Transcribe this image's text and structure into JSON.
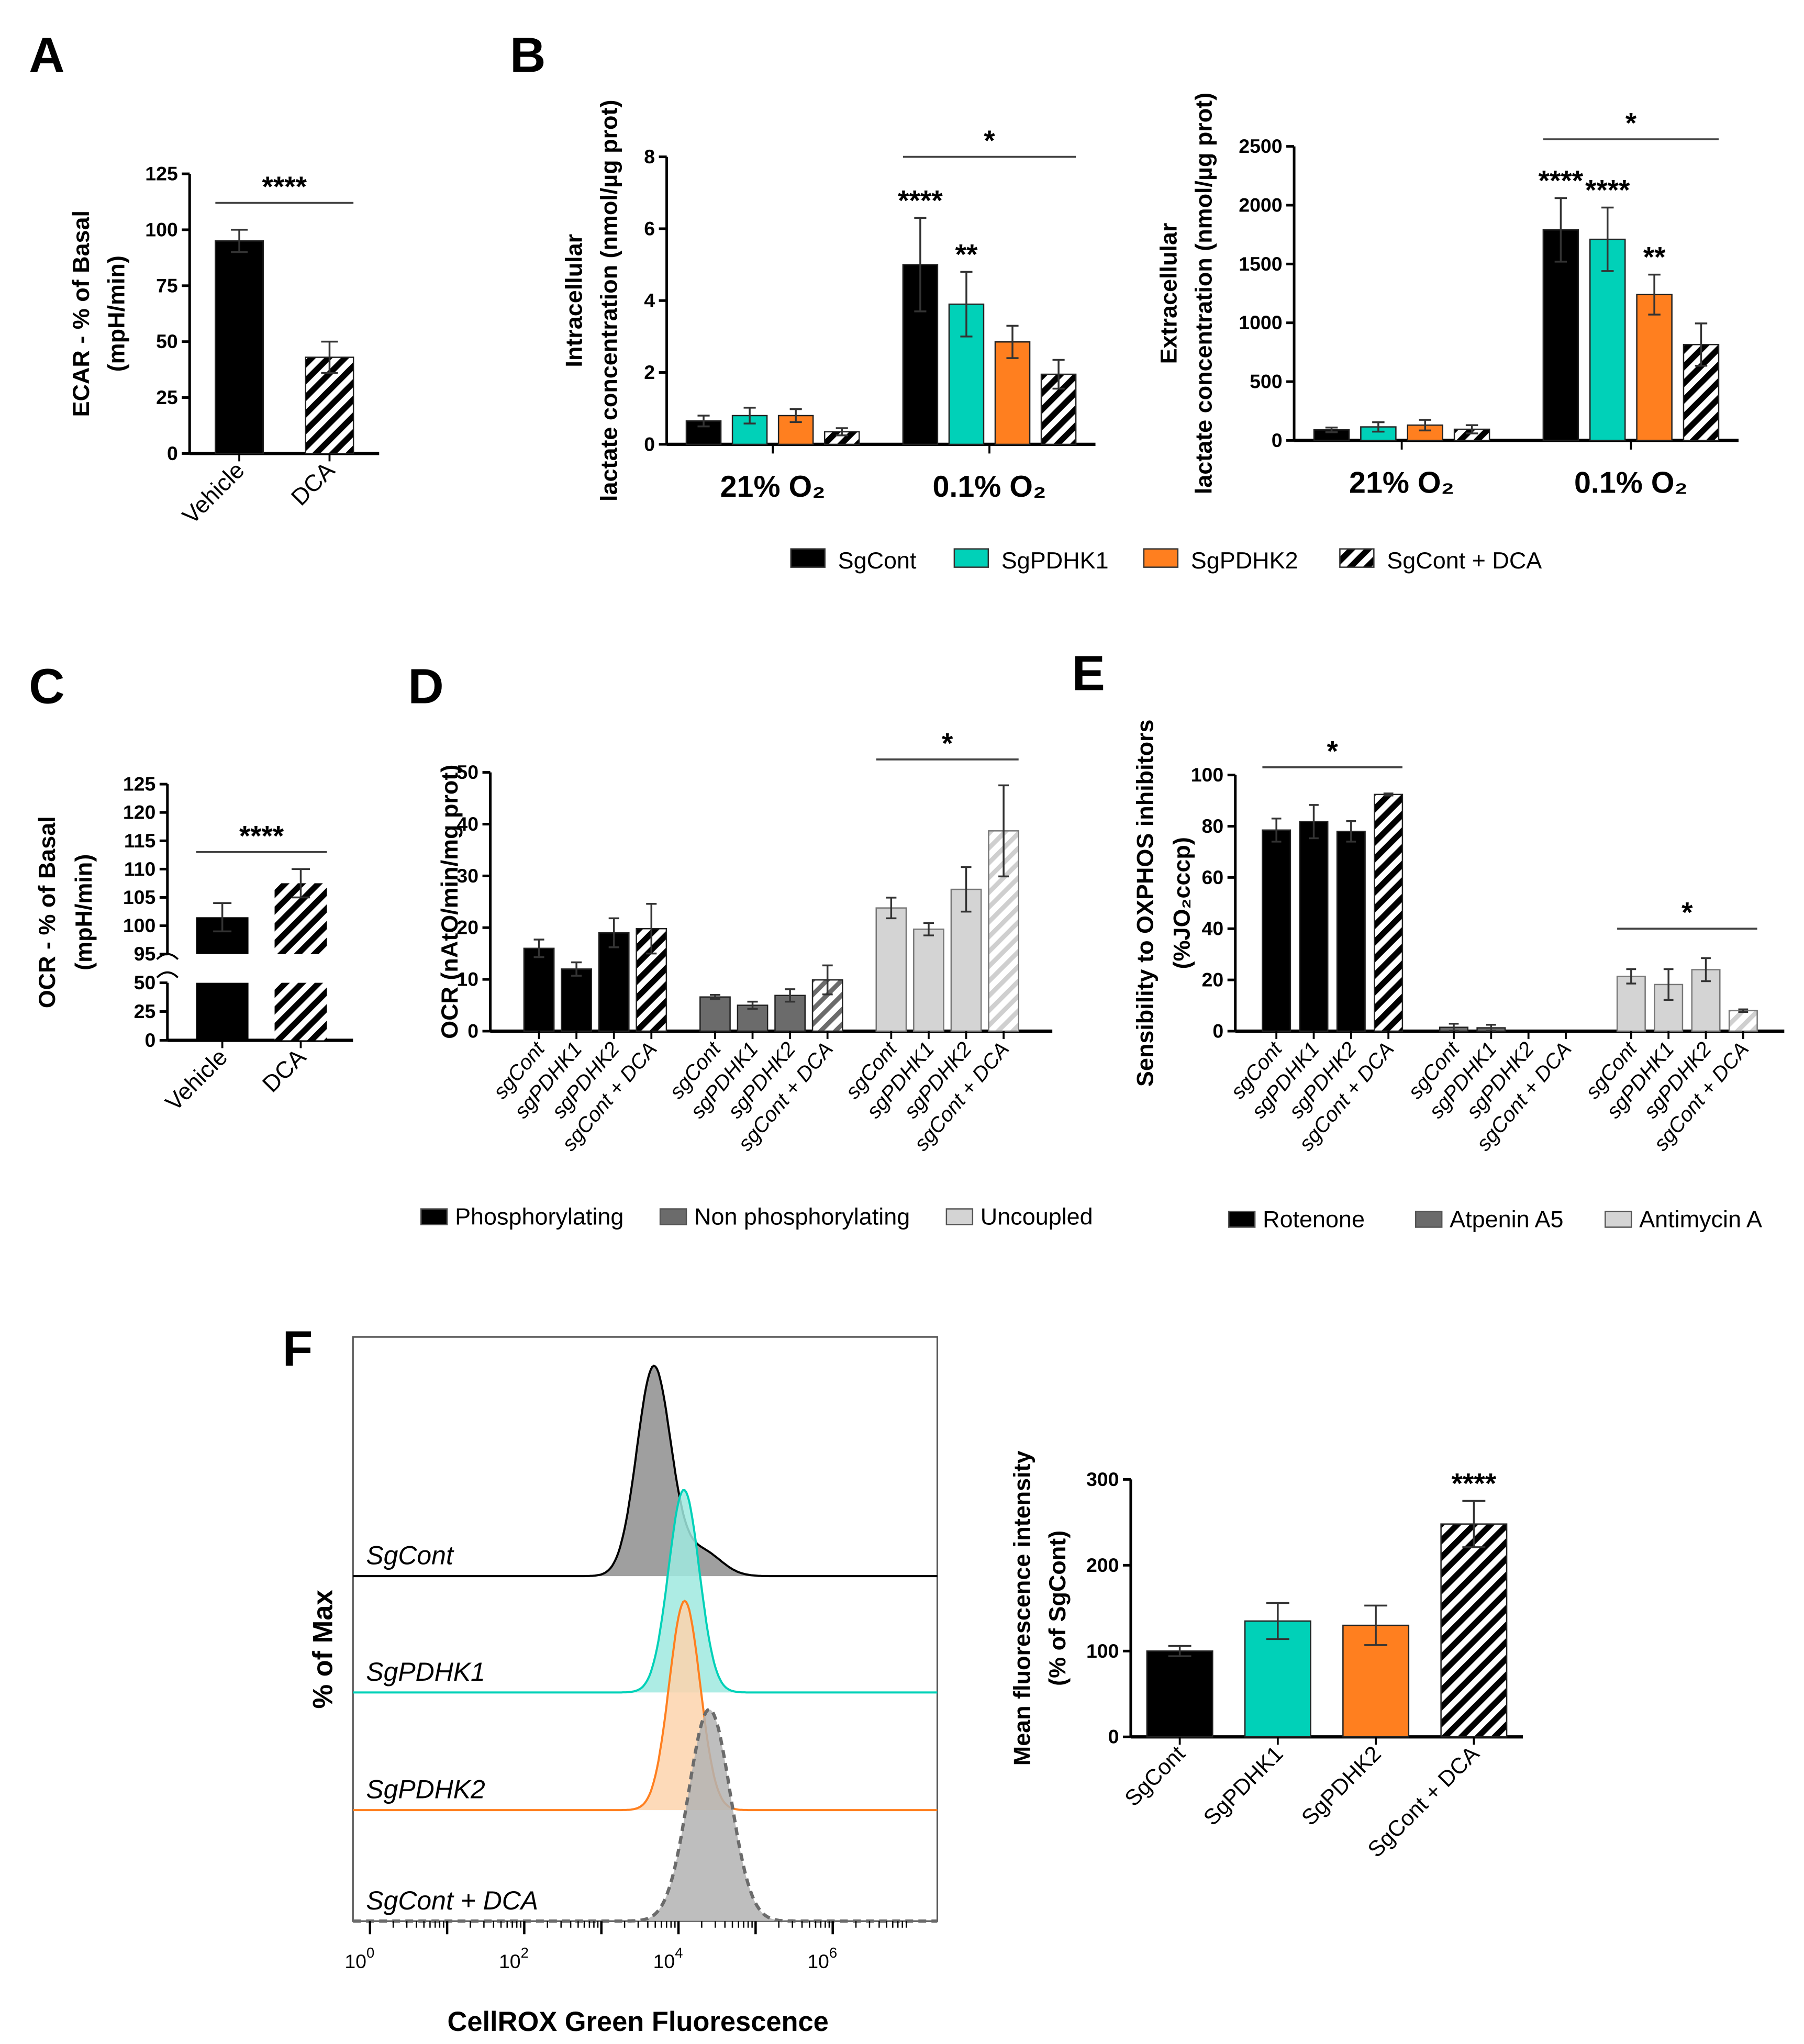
{
  "colors": {
    "black": "#000000",
    "teal": "#00d1b8",
    "orange": "#ff7f1f",
    "dark": "#6b6b6b",
    "light": "#d4d4d4",
    "tealFill": "#9fe9df",
    "orangeFill": "#fdd3ad",
    "grayFill": "#8e8e8e",
    "dcaFill": "#b3b3b3"
  },
  "panels": {
    "A": "A",
    "B": "B",
    "C": "C",
    "D": "D",
    "E": "E",
    "F": "F"
  },
  "chart_data": [
    {
      "id": "A",
      "type": "bar",
      "ylabel": [
        "ECAR - % of Basal",
        "(mpH/min)"
      ],
      "ylim": [
        0,
        125
      ],
      "yticks": [
        0,
        25,
        50,
        75,
        100,
        125
      ],
      "xmode": "rotated",
      "groups": [
        {
          "name": "",
          "bars": [
            {
              "label": "Vehicle",
              "value": 95,
              "error": 5,
              "fill": "black"
            },
            {
              "label": "DCA",
              "value": 43,
              "error": 7,
              "fill": "hatch"
            }
          ]
        }
      ],
      "sig": [
        {
          "text": "****",
          "from": 0,
          "to": 1,
          "at": 112
        }
      ]
    },
    {
      "id": "B1",
      "type": "bar",
      "ylabel": [
        "Intracellular",
        "lactate concentration (nmol/µg prot)"
      ],
      "ylim": [
        0,
        8
      ],
      "yticks": [
        0,
        2,
        4,
        6,
        8
      ],
      "xmode": "group",
      "groups": [
        {
          "name": "21% O₂",
          "bars": [
            {
              "label": "SgCont",
              "value": 0.65,
              "error": 0.15,
              "fill": "black"
            },
            {
              "label": "SgPDHK1",
              "value": 0.8,
              "error": 0.22,
              "fill": "teal"
            },
            {
              "label": "SgPDHK2",
              "value": 0.8,
              "error": 0.18,
              "fill": "orange"
            },
            {
              "label": "SgCont + DCA",
              "value": 0.35,
              "error": 0.1,
              "fill": "hatch"
            }
          ]
        },
        {
          "name": "0.1% O₂",
          "bars": [
            {
              "label": "SgCont",
              "value": 5.0,
              "error": 1.3,
              "fill": "black",
              "star": "****"
            },
            {
              "label": "SgPDHK1",
              "value": 3.9,
              "error": 0.9,
              "fill": "teal",
              "star": "**"
            },
            {
              "label": "SgPDHK2",
              "value": 2.85,
              "error": 0.45,
              "fill": "orange"
            },
            {
              "label": "SgCont + DCA",
              "value": 1.95,
              "error": 0.4,
              "fill": "hatch"
            }
          ]
        }
      ],
      "sig": [
        {
          "text": "*",
          "from": 4,
          "to": 7,
          "at": 8.0
        }
      ]
    },
    {
      "id": "B2",
      "type": "bar",
      "ylabel": [
        "Extracellular",
        "lactate concentration (nmol/µg prot)"
      ],
      "ylim": [
        0,
        2500
      ],
      "yticks": [
        0,
        500,
        1000,
        1500,
        2000,
        2500
      ],
      "xmode": "group",
      "groups": [
        {
          "name": "21% O₂",
          "bars": [
            {
              "label": "SgCont",
              "value": 90,
              "error": 20,
              "fill": "black"
            },
            {
              "label": "SgPDHK1",
              "value": 115,
              "error": 40,
              "fill": "teal"
            },
            {
              "label": "SgPDHK2",
              "value": 130,
              "error": 45,
              "fill": "orange"
            },
            {
              "label": "SgCont + DCA",
              "value": 95,
              "error": 35,
              "fill": "hatch"
            }
          ]
        },
        {
          "name": "0.1% O₂",
          "bars": [
            {
              "label": "SgCont",
              "value": 1790,
              "error": 270,
              "fill": "black",
              "star": "****"
            },
            {
              "label": "SgPDHK1",
              "value": 1710,
              "error": 270,
              "fill": "teal",
              "star": "****"
            },
            {
              "label": "SgPDHK2",
              "value": 1240,
              "error": 170,
              "fill": "orange",
              "star": "**"
            },
            {
              "label": "SgCont + DCA",
              "value": 815,
              "error": 180,
              "fill": "hatch"
            }
          ]
        }
      ],
      "sig": [
        {
          "text": "*",
          "from": 4,
          "to": 7,
          "at": 2560
        }
      ]
    },
    {
      "id": "C",
      "type": "bar",
      "broken_axis": true,
      "ylabel": [
        "OCR - % of Basal",
        "(mpH/min)"
      ],
      "ylim_lower": [
        0,
        50
      ],
      "ylim_upper": [
        95,
        125
      ],
      "yticks_lower": [
        0,
        25,
        50
      ],
      "yticks_upper": [
        95,
        100,
        105,
        110,
        115,
        120,
        125
      ],
      "bars": [
        {
          "label": "Vehicle",
          "value": 101.5,
          "error": 2.5,
          "fill": "black"
        },
        {
          "label": "DCA",
          "value": 107.5,
          "error": 2.5,
          "fill": "hatch"
        }
      ],
      "sig": [
        {
          "text": "****",
          "at": 113
        }
      ]
    },
    {
      "id": "D",
      "type": "bar",
      "ylabel": [
        "OCR (nAtO/min/mg prot)"
      ],
      "ylim": [
        0,
        50
      ],
      "yticks": [
        0,
        10,
        20,
        30,
        40,
        50
      ],
      "xmode": "rotated",
      "italic": true,
      "groups": [
        {
          "name": "Phosphorylating",
          "bars": [
            {
              "label": "sgCont",
              "value": 16,
              "error": 1.7,
              "fill": "black"
            },
            {
              "label": "sgPDHK1",
              "value": 12,
              "error": 1.3,
              "fill": "black"
            },
            {
              "label": "sgPDHK2",
              "value": 19,
              "error": 2.8,
              "fill": "black"
            },
            {
              "label": "sgCont + DCA",
              "value": 19.8,
              "error": 4.8,
              "fill": "hatch"
            }
          ]
        },
        {
          "name": "Non phosphorylating",
          "bars": [
            {
              "label": "sgCont",
              "value": 6.6,
              "error": 0.4,
              "fill": "dark"
            },
            {
              "label": "sgPDHK1",
              "value": 5,
              "error": 0.7,
              "fill": "dark"
            },
            {
              "label": "sgPDHK2",
              "value": 6.9,
              "error": 1.2,
              "fill": "dark"
            },
            {
              "label": "sgCont + DCA",
              "value": 9.9,
              "error": 2.8,
              "fill": "hatchDark"
            }
          ]
        },
        {
          "name": "Uncoupled",
          "bars": [
            {
              "label": "sgCont",
              "value": 23.8,
              "error": 2,
              "fill": "light"
            },
            {
              "label": "sgPDHK1",
              "value": 19.7,
              "error": 1.2,
              "fill": "light"
            },
            {
              "label": "sgPDHK2",
              "value": 27.4,
              "error": 4.3,
              "fill": "light"
            },
            {
              "label": "sgCont + DCA",
              "value": 38.7,
              "error": 8.8,
              "fill": "hatchLight"
            }
          ]
        }
      ],
      "sig": [
        {
          "text": "*",
          "from": 8,
          "to": 11,
          "at": 52.5
        }
      ],
      "legend": [
        {
          "label": "Phosphorylating",
          "fill": "black"
        },
        {
          "label": "Non phosphorylating",
          "fill": "dark"
        },
        {
          "label": "Uncoupled",
          "fill": "light"
        }
      ]
    },
    {
      "id": "E",
      "type": "bar",
      "ylabel": [
        "Sensibility to OXPHOS inhibitors",
        "(%JO₂cccp)"
      ],
      "ylim": [
        0,
        100
      ],
      "yticks": [
        0,
        20,
        40,
        60,
        80,
        100
      ],
      "xmode": "rotated",
      "italic": true,
      "groups": [
        {
          "name": "Rotenone",
          "bars": [
            {
              "label": "sgCont",
              "value": 78.5,
              "error": 4.5,
              "fill": "black"
            },
            {
              "label": "sgPDHK1",
              "value": 81.8,
              "error": 6.5,
              "fill": "black"
            },
            {
              "label": "sgPDHK2",
              "value": 78,
              "error": 4,
              "fill": "black"
            },
            {
              "label": "sgCont + DCA",
              "value": 92.4,
              "error": 0.4,
              "fill": "hatch"
            }
          ]
        },
        {
          "name": "Atpenin A5",
          "bars": [
            {
              "label": "sgCont",
              "value": 1.5,
              "error": 1.4,
              "fill": "dark"
            },
            {
              "label": "sgPDHK1",
              "value": 1.3,
              "error": 1.2,
              "fill": "dark"
            },
            {
              "label": "sgPDHK2",
              "value": 0,
              "error": 0,
              "fill": "dark"
            },
            {
              "label": "sgCont + DCA",
              "value": 0,
              "error": 0,
              "fill": "hatchDark"
            }
          ]
        },
        {
          "name": "Antimycin A",
          "bars": [
            {
              "label": "sgCont",
              "value": 21.4,
              "error": 2.8,
              "fill": "light"
            },
            {
              "label": "sgPDHK1",
              "value": 18.2,
              "error": 6,
              "fill": "light"
            },
            {
              "label": "sgPDHK2",
              "value": 24,
              "error": 4.5,
              "fill": "light"
            },
            {
              "label": "sgCont + DCA",
              "value": 8,
              "error": 0.5,
              "fill": "hatchLight"
            }
          ]
        }
      ],
      "sig": [
        {
          "text": "*",
          "from": 0,
          "to": 3,
          "at": 103
        },
        {
          "text": "*",
          "from": 8,
          "to": 11,
          "at": 40
        }
      ],
      "legend": [
        {
          "label": "Rotenone",
          "fill": "black"
        },
        {
          "label": "Atpenin A5",
          "fill": "dark"
        },
        {
          "label": "Antimycin A",
          "fill": "light"
        }
      ]
    },
    {
      "id": "F_hist",
      "type": "area",
      "xlabel": "CellROX Green Fluorescence",
      "ylabel": "% of Max",
      "xscale": "log10",
      "xlim_log10": [
        -0.2,
        7.3
      ],
      "xticks": [
        {
          "base": "10",
          "exp": "0"
        },
        {
          "base": "10",
          "exp": "2"
        },
        {
          "base": "10",
          "exp": "4"
        },
        {
          "base": "10",
          "exp": "6"
        }
      ],
      "tracks": [
        {
          "label": "SgCont",
          "peak_log10": 3.68,
          "sigma": 0.22,
          "shoulder_log10": 4.3,
          "shoulder_height": 0.12,
          "stroke": "black",
          "fill": "grayFill"
        },
        {
          "label": "SgPDHK1",
          "peak_log10": 4.07,
          "sigma": 0.2,
          "stroke": "teal",
          "fill": "tealFill"
        },
        {
          "label": "SgPDHK2",
          "peak_log10": 4.08,
          "sigma": 0.2,
          "stroke": "orange",
          "fill": "orangeFill"
        },
        {
          "label": "SgCont + DCA",
          "peak_log10": 4.4,
          "sigma": 0.27,
          "stroke": "dark",
          "fill": "dcaFill",
          "dashed": true
        }
      ]
    },
    {
      "id": "F_bar",
      "type": "bar",
      "ylabel": [
        "Mean fluorescence intensity",
        "(% of SgCont)"
      ],
      "ylim": [
        0,
        300
      ],
      "yticks": [
        0,
        100,
        200,
        300
      ],
      "xmode": "rotated",
      "groups": [
        {
          "name": "",
          "bars": [
            {
              "label": "SgCont",
              "value": 100,
              "error": 6,
              "fill": "black"
            },
            {
              "label": "SgPDHK1",
              "value": 135,
              "error": 21,
              "fill": "teal"
            },
            {
              "label": "SgPDHK2",
              "value": 130,
              "error": 23,
              "fill": "orange"
            },
            {
              "label": "SgCont + DCA",
              "value": 248,
              "error": 27,
              "fill": "hatch",
              "star": "****"
            }
          ]
        }
      ],
      "sig": []
    }
  ],
  "legend_B": [
    {
      "label": "SgCont",
      "fill": "black"
    },
    {
      "label": "SgPDHK1",
      "fill": "teal"
    },
    {
      "label": "SgPDHK2",
      "fill": "orange"
    },
    {
      "label": "SgCont + DCA",
      "fill": "hatch"
    }
  ]
}
